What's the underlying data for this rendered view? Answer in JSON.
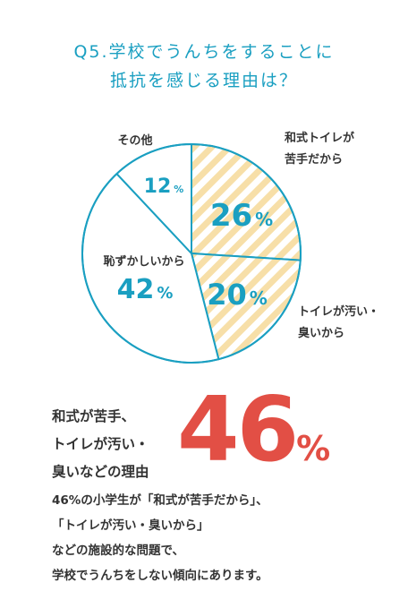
{
  "title": {
    "line1": "Q5.学校でうんちをすることに",
    "line2": "抵抗を感じる理由は？"
  },
  "colors": {
    "accent": "#1a9fc1",
    "stripe": "#f7dfa8",
    "highlight": "#e24f45",
    "text": "#333333"
  },
  "chart_data": {
    "type": "pie",
    "slices": [
      {
        "label_lines": [
          "和式トイレが",
          "苦手だから"
        ],
        "value": 26,
        "display": "26",
        "unit": "%",
        "pattern": "stripes"
      },
      {
        "label_lines": [
          "トイレが汚い・",
          "臭いから"
        ],
        "value": 20,
        "display": "20",
        "unit": "%",
        "pattern": "stripes"
      },
      {
        "label_lines": [
          "恥ずかしいから"
        ],
        "value": 42,
        "display": "42",
        "unit": "%",
        "pattern": "none"
      },
      {
        "label_lines": [
          "その他"
        ],
        "value": 12,
        "display": "12",
        "unit": "%",
        "pattern": "none"
      }
    ]
  },
  "highlight": {
    "lines": [
      "和式が苦手、",
      "トイレが汚い・",
      "臭いなどの理由"
    ],
    "value": "46",
    "unit": "%"
  },
  "description": {
    "lines": [
      "46%の小学生が「和式が苦手だから」、",
      "「トイレが汚い・臭いから」",
      "などの施設的な問題で、",
      "学校でうんちをしない傾向にあります。"
    ]
  }
}
